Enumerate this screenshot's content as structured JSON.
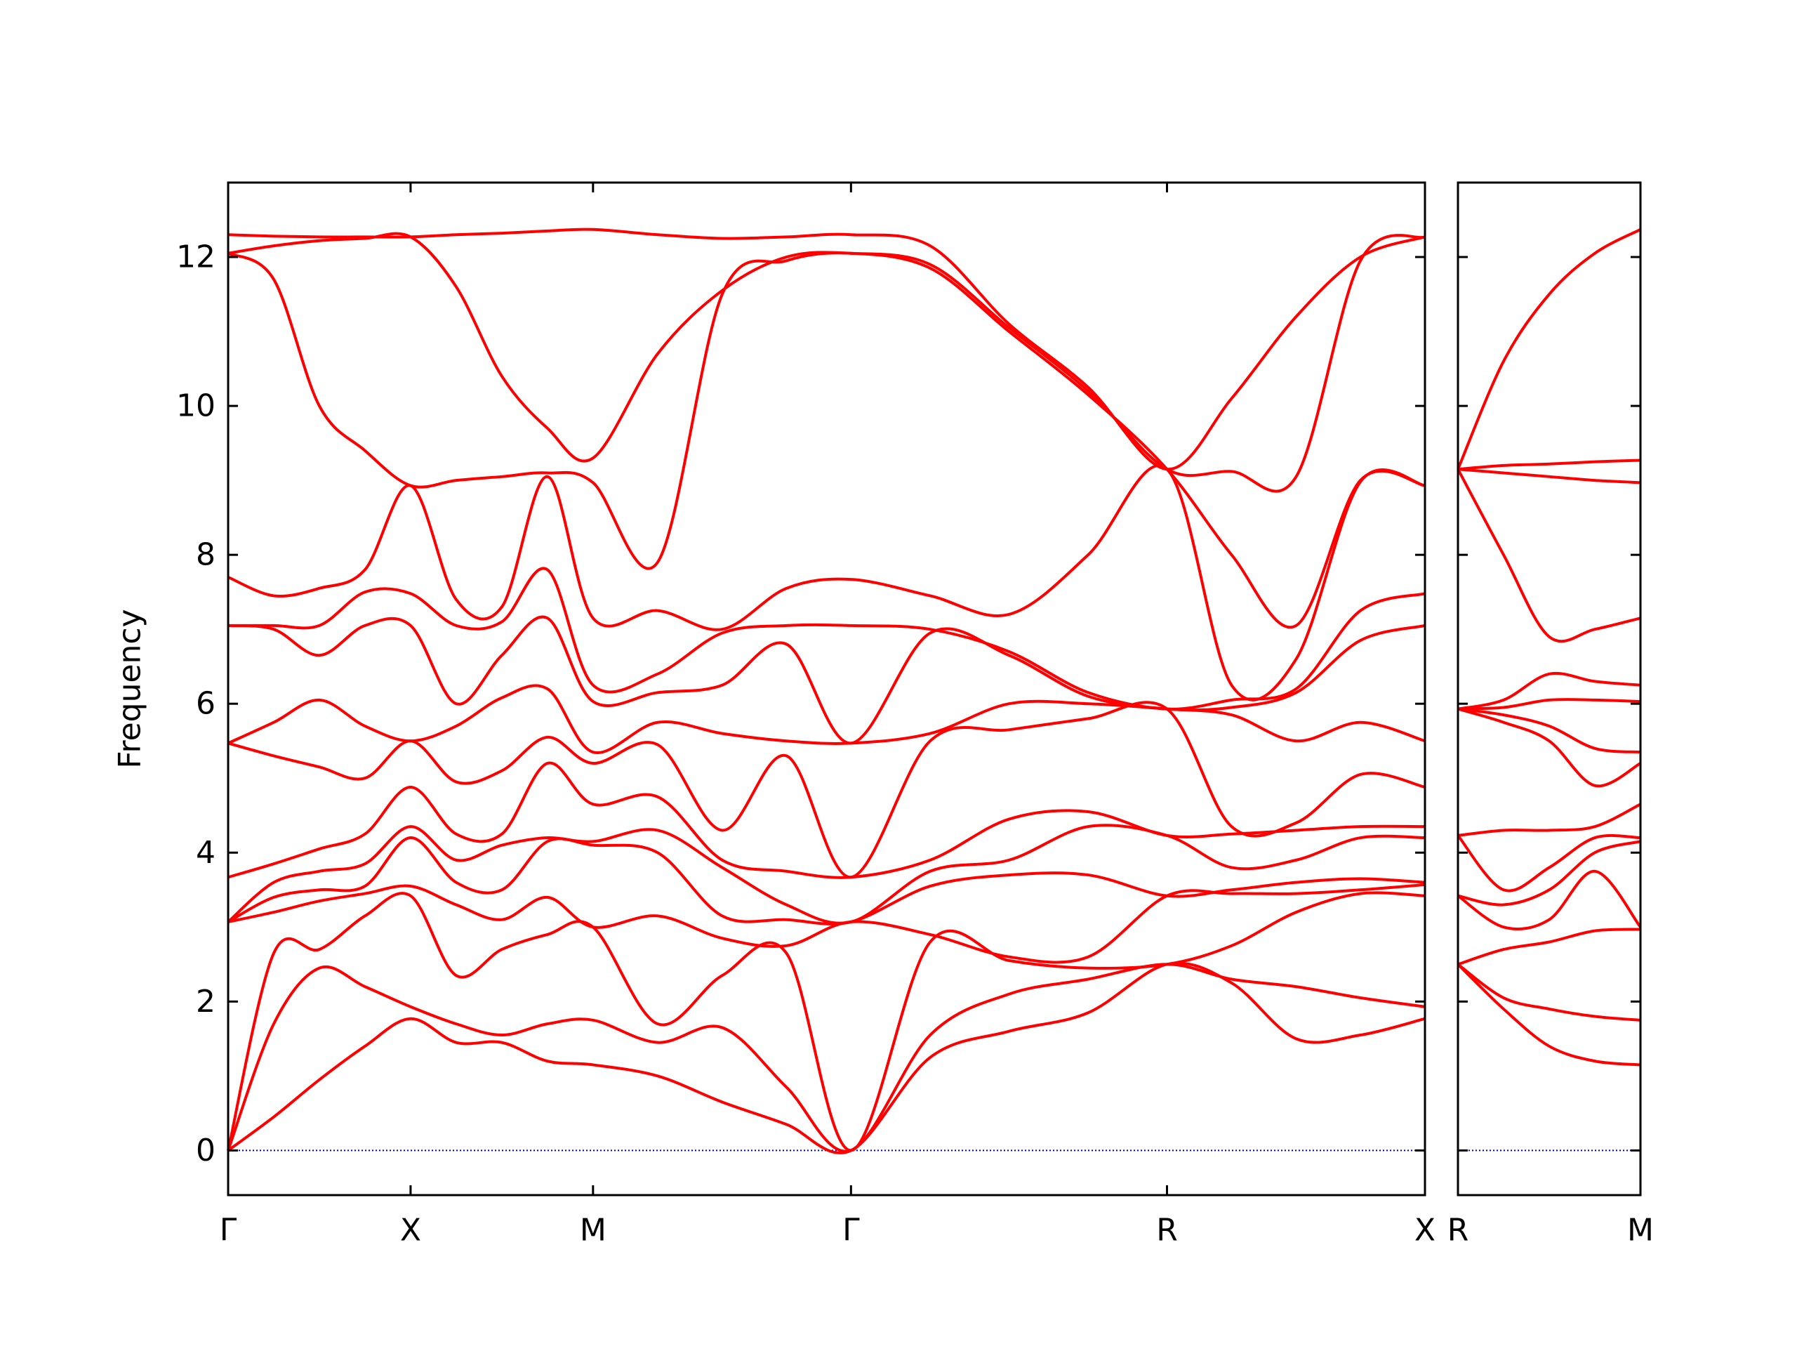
{
  "chart_data": [
    {
      "type": "line",
      "ylabel": "Frequency",
      "color": "#ff0000",
      "xlim": [
        0,
        3.28
      ],
      "ylim": [
        -0.6,
        13.0
      ],
      "yticks": [
        0,
        2,
        4,
        6,
        8,
        10,
        12
      ],
      "xticks": [
        {
          "value": 0,
          "label": "Γ"
        },
        {
          "value": 0.5,
          "label": "X"
        },
        {
          "value": 1.0,
          "label": "M"
        },
        {
          "value": 1.707,
          "label": "Γ"
        },
        {
          "value": 2.573,
          "label": "R"
        },
        {
          "value": 3.28,
          "label": "X"
        }
      ],
      "zero_line": {
        "value": 0,
        "color": "#0000cc"
      },
      "x": [
        0,
        0.125,
        0.25,
        0.375,
        0.5,
        0.625,
        0.75,
        0.875,
        1.0,
        1.177,
        1.354,
        1.53,
        1.707,
        1.924,
        2.14,
        2.357,
        2.573,
        2.75,
        2.927,
        3.103,
        3.28
      ],
      "series": [
        {
          "values": [
            0,
            0.45,
            0.95,
            1.4,
            1.77,
            1.45,
            1.45,
            1.2,
            1.15,
            1.0,
            0.65,
            0.35,
            0,
            1.25,
            1.6,
            1.85,
            2.5,
            2.25,
            1.5,
            1.55,
            1.77
          ]
        },
        {
          "values": [
            0,
            1.7,
            2.45,
            2.2,
            1.93,
            1.7,
            1.55,
            1.7,
            1.75,
            1.45,
            1.65,
            0.85,
            0,
            1.55,
            2.1,
            2.3,
            2.5,
            2.3,
            2.2,
            2.05,
            1.93
          ]
        },
        {
          "values": [
            0,
            2.65,
            2.7,
            3.15,
            3.42,
            2.35,
            2.7,
            2.9,
            3.0,
            1.7,
            2.35,
            2.65,
            0,
            2.8,
            2.55,
            2.45,
            2.5,
            2.75,
            3.2,
            3.45,
            3.42
          ]
        },
        {
          "values": [
            3.07,
            3.2,
            3.35,
            3.45,
            3.55,
            3.3,
            3.1,
            3.4,
            3.0,
            3.15,
            2.85,
            2.75,
            3.07,
            2.9,
            2.6,
            2.6,
            3.42,
            3.45,
            3.45,
            3.5,
            3.57
          ]
        },
        {
          "values": [
            3.07,
            3.4,
            3.5,
            3.55,
            4.2,
            3.6,
            3.5,
            4.15,
            4.1,
            4.0,
            3.15,
            3.1,
            3.07,
            3.55,
            3.7,
            3.7,
            3.42,
            3.5,
            3.6,
            3.65,
            3.6
          ]
        },
        {
          "values": [
            3.07,
            3.6,
            3.75,
            3.85,
            4.35,
            3.9,
            4.1,
            4.2,
            4.15,
            4.3,
            3.8,
            3.3,
            3.07,
            3.75,
            3.9,
            4.35,
            4.23,
            3.8,
            3.9,
            4.2,
            4.2
          ]
        },
        {
          "values": [
            3.67,
            3.85,
            4.05,
            4.25,
            4.88,
            4.25,
            4.25,
            5.2,
            4.65,
            4.75,
            3.9,
            3.75,
            3.67,
            3.9,
            4.45,
            4.55,
            4.23,
            4.25,
            4.3,
            4.35,
            4.35
          ]
        },
        {
          "values": [
            5.47,
            5.3,
            5.15,
            5.0,
            5.5,
            4.95,
            5.1,
            5.55,
            5.2,
            5.45,
            4.3,
            5.3,
            3.67,
            5.5,
            5.65,
            5.8,
            5.93,
            4.35,
            4.4,
            5.05,
            4.88
          ]
        },
        {
          "values": [
            5.47,
            5.75,
            6.05,
            5.7,
            5.5,
            5.7,
            6.08,
            6.2,
            5.35,
            5.75,
            5.6,
            5.5,
            5.47,
            5.6,
            6.0,
            6.0,
            5.93,
            5.85,
            5.5,
            5.75,
            5.5
          ]
        },
        {
          "values": [
            7.05,
            7.0,
            6.65,
            7.05,
            7.05,
            6.0,
            6.65,
            7.15,
            6.03,
            6.15,
            6.25,
            6.8,
            5.47,
            6.95,
            6.65,
            6.1,
            5.93,
            5.95,
            6.15,
            6.85,
            7.05
          ]
        },
        {
          "values": [
            7.05,
            7.05,
            7.05,
            7.5,
            7.48,
            7.05,
            7.1,
            7.8,
            6.25,
            6.4,
            6.95,
            7.05,
            7.05,
            7.0,
            6.7,
            6.15,
            5.93,
            6.05,
            6.2,
            7.25,
            7.48
          ]
        },
        {
          "values": [
            7.7,
            7.45,
            7.55,
            7.8,
            8.93,
            7.4,
            7.3,
            9.05,
            7.15,
            7.25,
            7.0,
            7.55,
            7.67,
            7.45,
            7.2,
            8.0,
            9.15,
            6.25,
            6.6,
            8.98,
            8.93
          ]
        },
        {
          "values": [
            12.05,
            11.7,
            10.0,
            9.4,
            8.93,
            9.0,
            9.05,
            9.1,
            8.97,
            7.9,
            11.5,
            11.95,
            12.05,
            11.85,
            11.0,
            10.15,
            9.15,
            8.0,
            7.05,
            9.0,
            8.93
          ]
        },
        {
          "values": [
            12.05,
            12.15,
            12.22,
            12.25,
            12.27,
            11.6,
            10.4,
            9.7,
            9.3,
            10.7,
            11.55,
            12.0,
            12.05,
            11.9,
            11.05,
            10.2,
            9.15,
            9.12,
            9.05,
            11.95,
            12.27
          ]
        },
        {
          "values": [
            12.3,
            12.28,
            12.27,
            12.27,
            12.27,
            12.3,
            12.32,
            12.35,
            12.37,
            12.3,
            12.25,
            12.27,
            12.3,
            12.15,
            11.1,
            10.25,
            9.15,
            10.1,
            11.2,
            12.0,
            12.27
          ]
        }
      ]
    },
    {
      "type": "line",
      "color": "#ff0000",
      "sharey": true,
      "xlim": [
        0,
        0.5
      ],
      "xticks": [
        {
          "value": 0,
          "label": "R"
        },
        {
          "value": 0.5,
          "label": "M"
        }
      ],
      "zero_line": {
        "value": 0,
        "color": "#0000cc"
      },
      "x": [
        0,
        0.125,
        0.25,
        0.375,
        0.5
      ],
      "series": [
        {
          "values": [
            2.5,
            1.9,
            1.4,
            1.2,
            1.15
          ]
        },
        {
          "values": [
            2.5,
            2.05,
            1.9,
            1.8,
            1.75
          ]
        },
        {
          "values": [
            2.5,
            2.7,
            2.8,
            2.95,
            2.97
          ]
        },
        {
          "values": [
            3.42,
            3.0,
            3.1,
            3.75,
            3.0
          ]
        },
        {
          "values": [
            3.42,
            3.3,
            3.5,
            4.0,
            4.15
          ]
        },
        {
          "values": [
            4.23,
            3.5,
            3.8,
            4.2,
            4.2
          ]
        },
        {
          "values": [
            4.23,
            4.3,
            4.3,
            4.35,
            4.65
          ]
        },
        {
          "values": [
            5.93,
            5.75,
            5.5,
            4.9,
            5.2
          ]
        },
        {
          "values": [
            5.93,
            5.85,
            5.7,
            5.4,
            5.35
          ]
        },
        {
          "values": [
            5.93,
            5.95,
            6.05,
            6.05,
            6.03
          ]
        },
        {
          "values": [
            5.93,
            6.05,
            6.4,
            6.3,
            6.25
          ]
        },
        {
          "values": [
            9.15,
            8.0,
            6.9,
            7.0,
            7.15
          ]
        },
        {
          "values": [
            9.15,
            9.1,
            9.05,
            9.0,
            8.97
          ]
        },
        {
          "values": [
            9.15,
            9.2,
            9.22,
            9.25,
            9.27
          ]
        },
        {
          "values": [
            9.15,
            10.6,
            11.5,
            12.05,
            12.37
          ]
        }
      ]
    }
  ]
}
